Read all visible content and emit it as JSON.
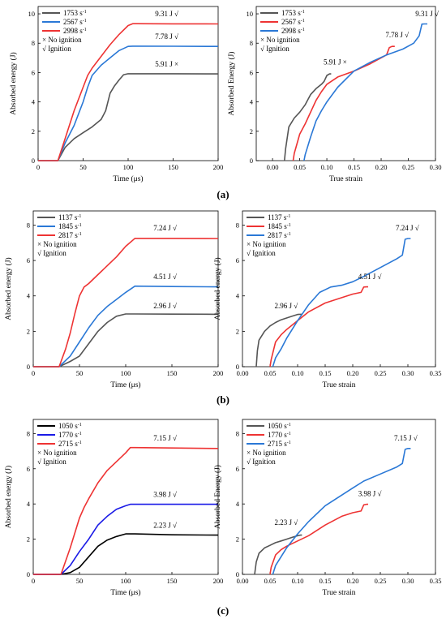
{
  "chart_data": [
    {
      "panel": "a-left",
      "type": "line",
      "xlabel": "Time (μs)",
      "ylabel": "Absorbed energy (J)",
      "xlim": [
        0,
        200
      ],
      "ylim": [
        0,
        10.5
      ],
      "xticks": [
        0,
        50,
        100,
        150,
        200
      ],
      "yticks": [
        0,
        2,
        4,
        6,
        8,
        10
      ],
      "legend": {
        "position": "top-left",
        "notes": [
          "× No ignition",
          "√ Ignition"
        ]
      },
      "series": [
        {
          "name": "1753",
          "color": "#555555",
          "x": [
            0,
            22,
            30,
            40,
            50,
            60,
            70,
            75,
            80,
            85,
            90,
            95,
            100,
            110,
            150,
            200
          ],
          "y": [
            0,
            0,
            0.9,
            1.5,
            1.9,
            2.3,
            2.8,
            3.4,
            4.6,
            5.1,
            5.5,
            5.85,
            5.92,
            5.92,
            5.92,
            5.91
          ]
        },
        {
          "name": "2567",
          "color": "#2a78d6",
          "x": [
            0,
            22,
            30,
            40,
            50,
            55,
            60,
            70,
            80,
            90,
            100,
            105,
            110,
            150,
            200
          ],
          "y": [
            0,
            0,
            1.2,
            2.4,
            4.0,
            5.0,
            5.8,
            6.5,
            7.0,
            7.5,
            7.78,
            7.8,
            7.8,
            7.79,
            7.78
          ]
        },
        {
          "name": "2998",
          "color": "#ee3333",
          "x": [
            0,
            22,
            30,
            40,
            50,
            55,
            60,
            70,
            80,
            90,
            100,
            105,
            110,
            150,
            200
          ],
          "y": [
            0,
            0,
            1.5,
            3.4,
            5.0,
            5.8,
            6.3,
            7.1,
            7.9,
            8.6,
            9.2,
            9.33,
            9.33,
            9.32,
            9.31
          ]
        }
      ],
      "annotations": [
        {
          "text": "5.91 J ×",
          "x": 130,
          "y": 6.4
        },
        {
          "text": "7.78 J  √",
          "x": 130,
          "y": 8.3
        },
        {
          "text": "9.31 J  √",
          "x": 130,
          "y": 9.85
        }
      ]
    },
    {
      "panel": "a-right",
      "type": "line",
      "xlabel": "True strain",
      "ylabel": "Absorbed Energy (J)",
      "xlim": [
        -0.03,
        0.3
      ],
      "ylim": [
        0,
        10.5
      ],
      "xticks": [
        0.0,
        0.05,
        0.1,
        0.15,
        0.2,
        0.25,
        0.3
      ],
      "yticks": [
        0,
        2,
        4,
        6,
        8,
        10
      ],
      "legend": {
        "position": "top-left",
        "notes": [
          "× No ignition",
          "√ Ignition"
        ]
      },
      "series": [
        {
          "name": "1753",
          "color": "#555555",
          "x": [
            0.022,
            0.024,
            0.03,
            0.04,
            0.05,
            0.06,
            0.07,
            0.08,
            0.09,
            0.095,
            0.1,
            0.105,
            0.108
          ],
          "y": [
            0,
            0.8,
            2.3,
            2.9,
            3.3,
            3.8,
            4.5,
            4.9,
            5.2,
            5.4,
            5.8,
            5.91,
            5.91
          ]
        },
        {
          "name": "2567",
          "color": "#ee3333",
          "x": [
            0.038,
            0.04,
            0.05,
            0.06,
            0.07,
            0.08,
            0.09,
            0.1,
            0.12,
            0.15,
            0.18,
            0.2,
            0.21,
            0.215,
            0.22,
            0.225
          ],
          "y": [
            0,
            0.5,
            1.8,
            2.5,
            3.3,
            4.1,
            4.7,
            5.2,
            5.7,
            6.1,
            6.6,
            7.0,
            7.2,
            7.7,
            7.78,
            7.78
          ]
        },
        {
          "name": "2998",
          "color": "#2a78d6",
          "x": [
            0.058,
            0.06,
            0.07,
            0.08,
            0.09,
            0.1,
            0.12,
            0.15,
            0.18,
            0.21,
            0.24,
            0.26,
            0.27,
            0.275,
            0.28,
            0.285
          ],
          "y": [
            0,
            0.4,
            1.6,
            2.7,
            3.4,
            4.0,
            5.0,
            6.1,
            6.7,
            7.2,
            7.6,
            8.0,
            8.5,
            9.3,
            9.31,
            9.31
          ]
        }
      ],
      "annotations": [
        {
          "text": "5.91 J ×",
          "x": 0.094,
          "y": 6.55
        },
        {
          "text": "7.78 J  √",
          "x": 0.208,
          "y": 8.4
        },
        {
          "text": "9.31 J  √",
          "x": 0.263,
          "y": 9.85
        }
      ]
    },
    {
      "panel": "b-left",
      "type": "line",
      "xlabel": "Time (μs)",
      "ylabel": "Absorbed energy (J)",
      "xlim": [
        0,
        200
      ],
      "ylim": [
        0,
        8.8
      ],
      "xticks": [
        0,
        50,
        100,
        150,
        200
      ],
      "yticks": [
        0,
        2,
        4,
        6,
        8
      ],
      "legend": {
        "position": "top-left",
        "notes": [
          "× No ignition",
          "√ Ignition"
        ]
      },
      "series": [
        {
          "name": "1137",
          "color": "#555555",
          "x": [
            0,
            28,
            40,
            50,
            60,
            70,
            80,
            90,
            100,
            110,
            150,
            200
          ],
          "y": [
            0,
            0,
            0.3,
            0.6,
            1.3,
            2.0,
            2.5,
            2.85,
            2.98,
            2.98,
            2.97,
            2.96
          ]
        },
        {
          "name": "1845",
          "color": "#2a78d6",
          "x": [
            0,
            28,
            40,
            50,
            60,
            70,
            80,
            90,
            100,
            110,
            150,
            200
          ],
          "y": [
            0,
            0,
            0.6,
            1.4,
            2.2,
            2.9,
            3.4,
            3.8,
            4.2,
            4.55,
            4.53,
            4.51
          ]
        },
        {
          "name": "2817",
          "color": "#ee3333",
          "x": [
            0,
            28,
            35,
            40,
            45,
            50,
            55,
            60,
            70,
            80,
            90,
            100,
            110,
            150,
            200
          ],
          "y": [
            0,
            0,
            1.0,
            1.9,
            3.0,
            4.0,
            4.5,
            4.7,
            5.2,
            5.7,
            6.2,
            6.8,
            7.25,
            7.25,
            7.24
          ]
        }
      ],
      "annotations": [
        {
          "text": "2.96 J  √",
          "x": 130,
          "y": 3.3
        },
        {
          "text": "4.51 J  √",
          "x": 130,
          "y": 4.95
        },
        {
          "text": "7.24 J  √",
          "x": 130,
          "y": 7.7
        }
      ]
    },
    {
      "panel": "b-right",
      "type": "line",
      "xlabel": "True strain",
      "ylabel": "Absorbed energy (J)",
      "xlim": [
        0,
        0.35
      ],
      "ylim": [
        0,
        8.8
      ],
      "xticks": [
        0.0,
        0.05,
        0.1,
        0.15,
        0.2,
        0.25,
        0.3,
        0.35
      ],
      "yticks": [
        0,
        2,
        4,
        6,
        8
      ],
      "legend": {
        "position": "top-left",
        "notes": [
          "× No ignition",
          "√ Ignition"
        ]
      },
      "series": [
        {
          "name": "1137",
          "color": "#555555",
          "x": [
            0.025,
            0.027,
            0.03,
            0.04,
            0.05,
            0.06,
            0.07,
            0.08,
            0.09,
            0.1,
            0.105,
            0.108
          ],
          "y": [
            0,
            0.9,
            1.5,
            2.0,
            2.3,
            2.5,
            2.65,
            2.75,
            2.85,
            2.95,
            2.96,
            2.96
          ]
        },
        {
          "name": "1845",
          "color": "#ee3333",
          "x": [
            0.05,
            0.052,
            0.06,
            0.07,
            0.08,
            0.1,
            0.12,
            0.15,
            0.18,
            0.2,
            0.215,
            0.22,
            0.225,
            0.228
          ],
          "y": [
            0,
            0.4,
            1.4,
            1.8,
            2.1,
            2.6,
            3.1,
            3.6,
            3.9,
            4.1,
            4.2,
            4.5,
            4.51,
            4.51
          ]
        },
        {
          "name": "2817",
          "color": "#2a78d6",
          "x": [
            0.055,
            0.06,
            0.07,
            0.08,
            0.09,
            0.1,
            0.12,
            0.14,
            0.16,
            0.18,
            0.2,
            0.22,
            0.25,
            0.28,
            0.29,
            0.295,
            0.3,
            0.305
          ],
          "y": [
            0,
            0.5,
            1.0,
            1.6,
            2.1,
            2.6,
            3.5,
            4.2,
            4.5,
            4.6,
            4.8,
            5.1,
            5.6,
            6.1,
            6.3,
            7.2,
            7.24,
            7.24
          ]
        }
      ],
      "annotations": [
        {
          "text": "2.96 J  √",
          "x": 0.058,
          "y": 3.3
        },
        {
          "text": "4.51 J  √",
          "x": 0.21,
          "y": 4.95
        },
        {
          "text": "7.24 J  √",
          "x": 0.278,
          "y": 7.7
        }
      ]
    },
    {
      "panel": "c-left",
      "type": "line",
      "xlabel": "Time (μs)",
      "ylabel": "Absorbed energy (J)",
      "xlim": [
        0,
        200
      ],
      "ylim": [
        0,
        8.8
      ],
      "xticks": [
        0,
        50,
        100,
        150,
        200
      ],
      "yticks": [
        0,
        2,
        4,
        6,
        8
      ],
      "legend": {
        "position": "top-left",
        "notes": [
          "× No ignition",
          "√ Ignition"
        ]
      },
      "series": [
        {
          "name": "1050",
          "color": "#000000",
          "x": [
            0,
            30,
            40,
            50,
            60,
            70,
            80,
            90,
            100,
            105,
            110,
            150,
            200
          ],
          "y": [
            0,
            0,
            0.1,
            0.4,
            1.0,
            1.6,
            1.95,
            2.15,
            2.3,
            2.3,
            2.3,
            2.25,
            2.23
          ]
        },
        {
          "name": "1770",
          "color": "#1a1ae6",
          "x": [
            0,
            30,
            40,
            50,
            60,
            70,
            80,
            90,
            100,
            105,
            110,
            150,
            200
          ],
          "y": [
            0,
            0,
            0.5,
            1.3,
            2.0,
            2.8,
            3.3,
            3.7,
            3.9,
            3.98,
            3.98,
            3.98,
            3.98
          ]
        },
        {
          "name": "2715",
          "color": "#ee3333",
          "x": [
            0,
            30,
            40,
            50,
            55,
            60,
            70,
            80,
            90,
            100,
            105,
            110,
            150,
            200
          ],
          "y": [
            0,
            0,
            1.5,
            3.2,
            3.8,
            4.3,
            5.2,
            5.9,
            6.4,
            6.9,
            7.2,
            7.2,
            7.18,
            7.15
          ]
        }
      ],
      "annotations": [
        {
          "text": "2.23 J  √",
          "x": 130,
          "y": 2.65
        },
        {
          "text": "3.98 J  √",
          "x": 130,
          "y": 4.4
        },
        {
          "text": "7.15 J  √",
          "x": 130,
          "y": 7.6
        }
      ]
    },
    {
      "panel": "c-right",
      "type": "line",
      "xlabel": "True strain",
      "ylabel": "Absorbed Energy (J)",
      "xlim": [
        0,
        0.35
      ],
      "ylim": [
        0,
        8.8
      ],
      "xticks": [
        0.0,
        0.05,
        0.1,
        0.15,
        0.2,
        0.25,
        0.3,
        0.35
      ],
      "yticks": [
        0,
        2,
        4,
        6,
        8
      ],
      "legend": {
        "position": "top-left",
        "notes": [
          "× No ignition",
          "√ Ignition"
        ]
      },
      "series": [
        {
          "name": "1050",
          "color": "#555555",
          "x": [
            0.022,
            0.025,
            0.03,
            0.04,
            0.05,
            0.06,
            0.07,
            0.08,
            0.09,
            0.1,
            0.105,
            0.108
          ],
          "y": [
            0,
            0.7,
            1.2,
            1.5,
            1.65,
            1.8,
            1.9,
            2.0,
            2.1,
            2.2,
            2.23,
            2.23
          ]
        },
        {
          "name": "1770",
          "color": "#ee3333",
          "x": [
            0.05,
            0.052,
            0.06,
            0.07,
            0.08,
            0.1,
            0.12,
            0.15,
            0.18,
            0.2,
            0.215,
            0.22,
            0.225,
            0.228
          ],
          "y": [
            0,
            0.4,
            1.1,
            1.4,
            1.6,
            1.9,
            2.2,
            2.8,
            3.3,
            3.5,
            3.6,
            3.95,
            3.98,
            3.98
          ]
        },
        {
          "name": "2715",
          "color": "#2a78d6",
          "x": [
            0.055,
            0.06,
            0.07,
            0.08,
            0.1,
            0.12,
            0.15,
            0.18,
            0.2,
            0.22,
            0.25,
            0.28,
            0.29,
            0.295,
            0.3,
            0.305
          ],
          "y": [
            0,
            0.5,
            1.0,
            1.5,
            2.3,
            3.0,
            3.9,
            4.5,
            4.9,
            5.3,
            5.7,
            6.1,
            6.3,
            7.1,
            7.15,
            7.15
          ]
        }
      ],
      "annotations": [
        {
          "text": "2.23 J  √",
          "x": 0.058,
          "y": 2.8
        },
        {
          "text": "3.98 J  √",
          "x": 0.21,
          "y": 4.45
        },
        {
          "text": "7.15 J  √",
          "x": 0.275,
          "y": 7.6
        }
      ]
    }
  ],
  "legend_unit_superscript": "-1",
  "legend_unit": "s",
  "captions": [
    "(a)",
    "(b)",
    "(c)"
  ]
}
